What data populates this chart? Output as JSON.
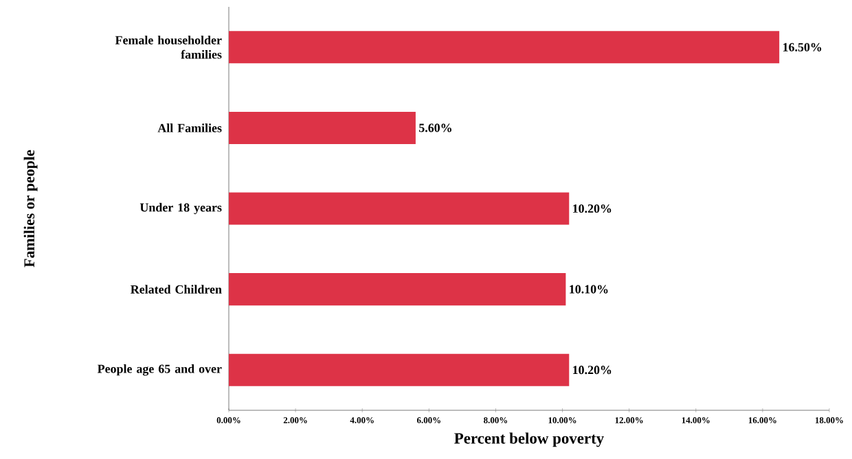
{
  "chart_data": {
    "type": "bar",
    "orientation": "horizontal",
    "categories": [
      "Female householder families",
      "All Families",
      "Under 18 years",
      "Related Children",
      "People age 65 and over"
    ],
    "values": [
      16.5,
      5.6,
      10.2,
      10.1,
      10.2
    ],
    "value_labels": [
      "16.50%",
      "5.60%",
      "10.20%",
      "10.10%",
      "10.20%"
    ],
    "color": "#dd3347",
    "xlim": [
      0,
      18
    ],
    "xticks": [
      {
        "value": 0,
        "label": "0.00%"
      },
      {
        "value": 2,
        "label": "2.00%"
      },
      {
        "value": 4,
        "label": "4.00%"
      },
      {
        "value": 6,
        "label": "6.00%"
      },
      {
        "value": 8,
        "label": "8.00%"
      },
      {
        "value": 10,
        "label": "10.00%"
      },
      {
        "value": 12,
        "label": "12.00%"
      },
      {
        "value": 14,
        "label": "14.00%"
      },
      {
        "value": 16,
        "label": "16.00%"
      },
      {
        "value": 18,
        "label": "18.00%"
      }
    ],
    "xlabel": "Percent below poverty",
    "ylabel": "Families or people"
  }
}
